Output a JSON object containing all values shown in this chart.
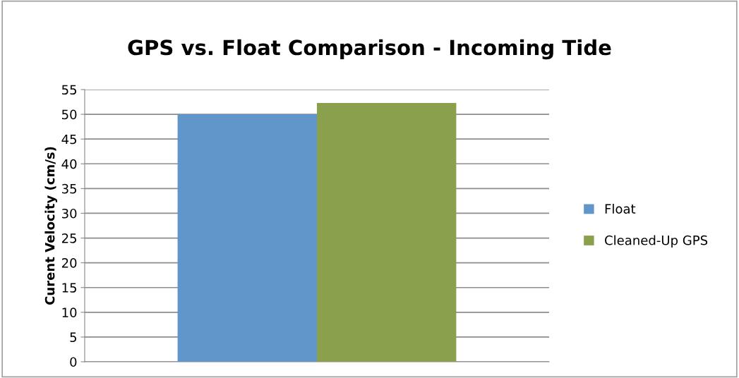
{
  "chart_data": {
    "type": "bar",
    "title": "GPS vs. Float Comparison - Incoming Tide",
    "ylabel": "Curent Velocity (cm/s)",
    "categories": [
      null
    ],
    "series": [
      {
        "name": "Float",
        "color": "#6096c9",
        "values": [
          50
        ]
      },
      {
        "name": "Cleaned-Up GPS",
        "color": "#8ba04c",
        "values": [
          52.3
        ]
      }
    ],
    "ylim": [
      0,
      55
    ],
    "yticks": [
      0,
      5,
      10,
      15,
      20,
      25,
      30,
      35,
      40,
      45,
      50,
      55
    ],
    "grid": "y",
    "legend": "right"
  }
}
